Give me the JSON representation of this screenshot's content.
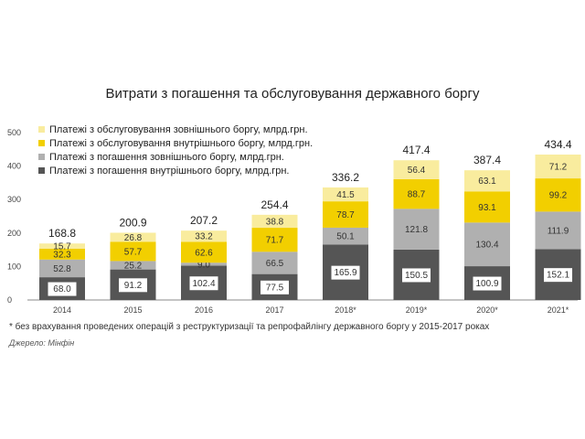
{
  "chart_data": {
    "type": "bar",
    "stacked": true,
    "title": "Витрати з погашення та обслуговування державного боргу",
    "categories": [
      "2014",
      "2015",
      "2016",
      "2017",
      "2018*",
      "2019*",
      "2020*",
      "2021*"
    ],
    "series": [
      {
        "name": "Платежі з погашення  внутрішнього боргу, млрд.грн.",
        "color": "#555555",
        "label_color": "#ffffff",
        "values": [
          68.0,
          91.2,
          102.4,
          77.5,
          165.9,
          150.5,
          100.9,
          152.1
        ],
        "labels": [
          "68.0",
          "91.2",
          "102.4",
          "77.5",
          "165.9",
          "150.5",
          "100.9",
          "152.1"
        ]
      },
      {
        "name": "Платежі з погашення  зовнішнього боргу, млрд.грн.",
        "color": "#b0b0b0",
        "label_color": "#333333",
        "values": [
          52.8,
          25.2,
          9.0,
          66.5,
          50.1,
          121.8,
          130.4,
          111.9
        ],
        "labels": [
          "52.8",
          "25.2",
          "9.0",
          "66.5",
          "50.1",
          "121.8",
          "130.4",
          "111.9"
        ]
      },
      {
        "name": "Платежі з обслуговування внутрішнього боргу, млрд.грн.",
        "color": "#f2cf00",
        "label_color": "#333333",
        "values": [
          32.3,
          57.7,
          62.6,
          71.7,
          78.7,
          88.7,
          93.1,
          99.2
        ],
        "labels": [
          "32.3",
          "57.7",
          "62.6",
          "71.7",
          "78.7",
          "88.7",
          "93.1",
          "99.2"
        ]
      },
      {
        "name": "Платежі з обслуговування зовнішнього боргу, млрд.грн.",
        "color": "#f9ec9e",
        "label_color": "#333333",
        "values": [
          15.7,
          26.8,
          33.2,
          38.8,
          41.5,
          56.4,
          63.1,
          71.2
        ],
        "labels": [
          "15.7",
          "26.8",
          "33.2",
          "38.8",
          "41.5",
          "56.4",
          "63.1",
          "71.2"
        ]
      }
    ],
    "legend_order": [
      3,
      2,
      1,
      0
    ],
    "totals": [
      "168.8",
      "200.9",
      "207.2",
      "254.4",
      "336.2",
      "417.4",
      "387.4",
      "434.4"
    ],
    "yticks": [
      "0",
      "100",
      "200",
      "300",
      "400",
      "500"
    ],
    "ylim": [
      0,
      500
    ],
    "grid": false,
    "legend_position": "top-left"
  },
  "footnote": "* без врахування проведених операцій з реструктуризації та репрофайлінгу державного боргу у 2015-2017 роках",
  "source": "Джерело: Мінфін"
}
